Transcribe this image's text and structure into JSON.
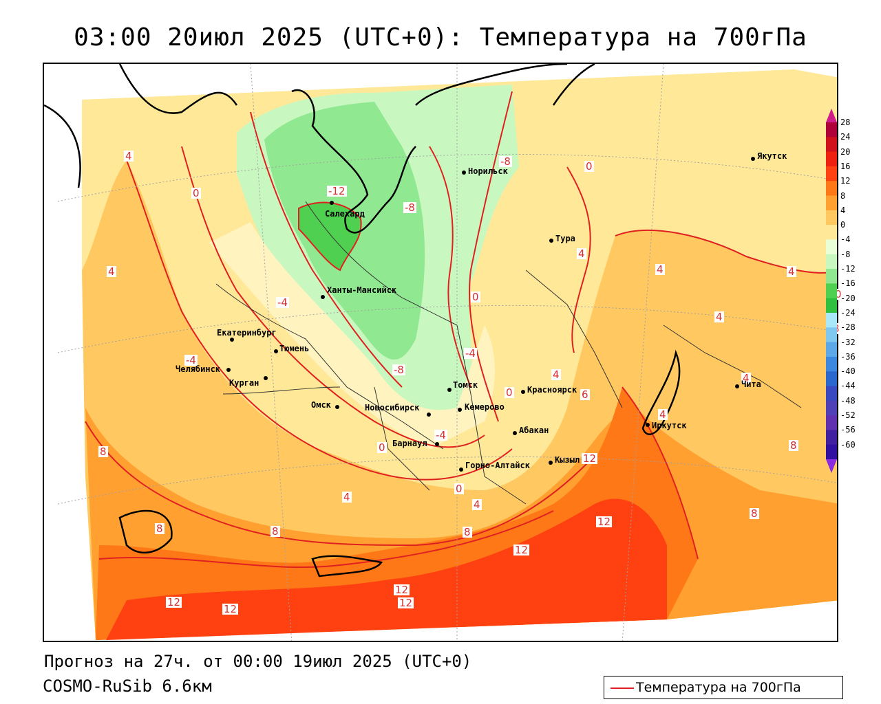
{
  "title": "03:00 20июл 2025 (UTC+0): Температура на 700гПа",
  "footer": {
    "forecast": "Прогноз на 27ч. от 00:00 19июл 2025 (UTC+0)",
    "model": "COSMO-RuSib 6.6км"
  },
  "legend": {
    "label": "Температура на 700гПа",
    "line_color": "#e02020"
  },
  "colorbar": {
    "labels": [
      "28",
      "24",
      "20",
      "16",
      "12",
      "8",
      "4",
      "0",
      "-4",
      "-8",
      "-12",
      "-16",
      "-20",
      "-24",
      "-28",
      "-32",
      "-36",
      "-40",
      "-44",
      "-48",
      "-52",
      "-56",
      "-60"
    ],
    "colors": [
      "#b0003a",
      "#d0101a",
      "#f02010",
      "#ff4010",
      "#ff7818",
      "#ffa030",
      "#ffc860",
      "#ffe898",
      "#e8ffd8",
      "#c8f8c0",
      "#90e890",
      "#50d050",
      "#30c040",
      "#a8e8f8",
      "#80c8f0",
      "#5ca8e8",
      "#3c88e0",
      "#2a68d0",
      "#3848c0",
      "#5040b8",
      "#6030b0",
      "#4020a0",
      "#3010a0"
    ]
  },
  "cities": [
    {
      "name": "Якутск"
    },
    {
      "name": "Норильск"
    },
    {
      "name": "Салехард"
    },
    {
      "name": "Тура"
    },
    {
      "name": "Ханты-Мансийск"
    },
    {
      "name": "Екатеринбург"
    },
    {
      "name": "Тюмень"
    },
    {
      "name": "Челябинск"
    },
    {
      "name": "Курган"
    },
    {
      "name": "Омск"
    },
    {
      "name": "Новосибирск"
    },
    {
      "name": "Томск"
    },
    {
      "name": "Кемерово"
    },
    {
      "name": "Красноярск"
    },
    {
      "name": "Барнаул"
    },
    {
      "name": "Абакан"
    },
    {
      "name": "Горно-Алтайск"
    },
    {
      "name": "Кызыл"
    },
    {
      "name": "Иркутск"
    },
    {
      "name": "Чита"
    }
  ],
  "isotherm_labels": [
    "-12",
    "-8",
    "-8",
    "-8",
    "-4",
    "-4",
    "-4",
    "-4",
    "0",
    "0",
    "0",
    "0",
    "0",
    "0",
    "0",
    "4",
    "4",
    "4",
    "4",
    "4",
    "4",
    "4",
    "4",
    "4",
    "4",
    "4",
    "6",
    "8",
    "8",
    "8",
    "8",
    "8",
    "8",
    "8",
    "12",
    "12",
    "12",
    "12",
    "12",
    "12",
    "12"
  ]
}
